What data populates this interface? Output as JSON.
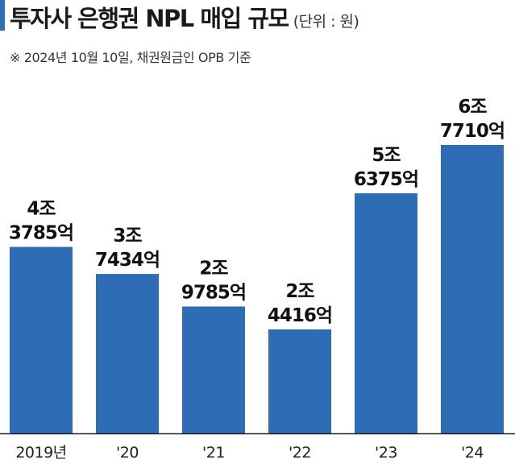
{
  "header": {
    "title": "투자사 은행권 NPL 매입 규모",
    "unit": "(단위 : 원)",
    "note": "※ 2024년 10월 10일, 채권원금인 OPB 기준"
  },
  "colors": {
    "accent": "#2e6db5",
    "bar": "#2e6db5",
    "baseline": "#222222"
  },
  "chart_data": {
    "type": "bar",
    "title": "투자사 은행권 NPL 매입 규모",
    "unit": "원",
    "categories": [
      "2019년",
      "'20",
      "'21",
      "'22",
      "'23",
      "'24"
    ],
    "values": [
      43785,
      37434,
      29785,
      24416,
      56375,
      67710
    ],
    "value_unit": "억원",
    "labels": [
      [
        "4조",
        "3785억"
      ],
      [
        "3조",
        "7434억"
      ],
      [
        "2조",
        "9785억"
      ],
      [
        "2조",
        "4416억"
      ],
      [
        "5조",
        "6375억"
      ],
      [
        "6조",
        "7710억"
      ]
    ],
    "ylim": [
      0,
      75000
    ],
    "grid": false,
    "legend": "none"
  }
}
